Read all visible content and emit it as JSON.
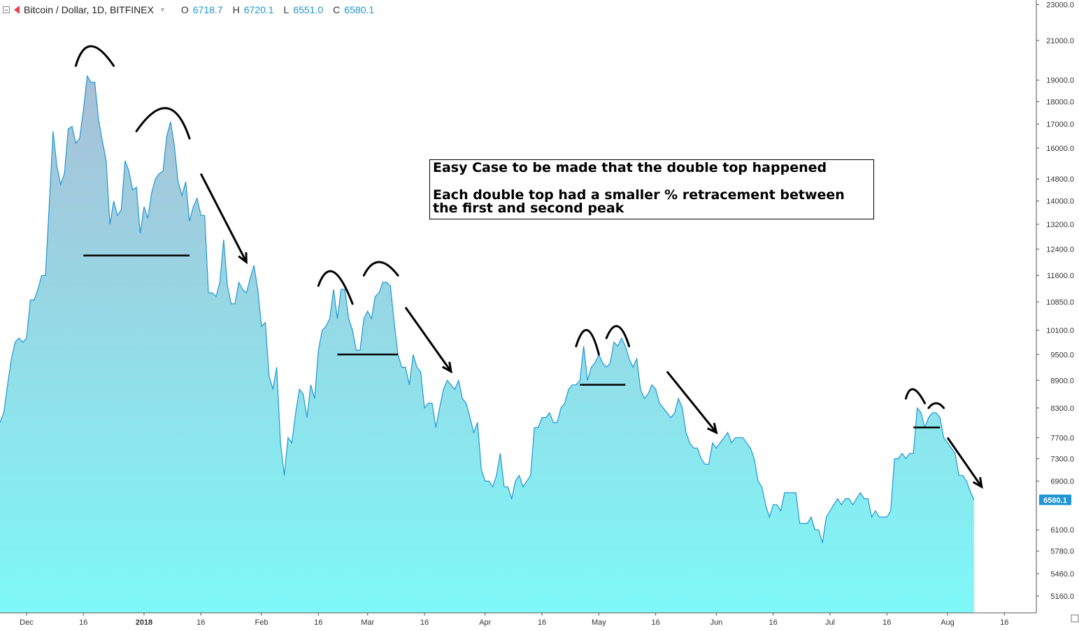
{
  "header": {
    "symbol": "Bitcoin / Dollar, 1D, BITFINEX",
    "open_key": "O",
    "open": "6718.7",
    "high_key": "H",
    "high": "6720.1",
    "low_key": "L",
    "low": "6551.0",
    "close_key": "C",
    "close": "6580.1"
  },
  "annotation": {
    "line1": "Easy Case to be made that the double top happened",
    "line2": "Each double top had a smaller %  retracement between the first and second peak"
  },
  "chart_data": {
    "type": "area",
    "series_color": "#2196d3",
    "fill_top": "#a9bfd6",
    "fill_bottom": "#7ef8f8",
    "y_scale": "log",
    "ylim": [
      5000,
      23500
    ],
    "y_ticks": [
      "23000.0",
      "21000.0",
      "19000.0",
      "18000.0",
      "17000.0",
      "16000.0",
      "14800.0",
      "14000.0",
      "13200.0",
      "12400.0",
      "11600.0",
      "10850.0",
      "10100.0",
      "9500.0",
      "8900.0",
      "8300.0",
      "7700.0",
      "7300.0",
      "6900.0",
      "6100.0",
      "5780.0",
      "5460.0",
      "5160.0"
    ],
    "x_ticks": [
      "Dec",
      "16",
      "2018",
      "16",
      "Feb",
      "16",
      "Mar",
      "16",
      "Apr",
      "16",
      "May",
      "16",
      "Jun",
      "16",
      "Jul",
      "16",
      "Aug",
      "16"
    ],
    "x_tick_dates": [
      "2017-12-01",
      "2017-12-16",
      "2018-01-01",
      "2018-01-16",
      "2018-02-01",
      "2018-02-16",
      "2018-03-01",
      "2018-03-16",
      "2018-04-01",
      "2018-04-16",
      "2018-05-01",
      "2018-05-16",
      "2018-06-01",
      "2018-06-16",
      "2018-07-01",
      "2018-07-16",
      "2018-08-01",
      "2018-08-16"
    ],
    "last_price": "6580.1",
    "points": [
      [
        "2017-11-24",
        8000
      ],
      [
        "2017-11-25",
        8200
      ],
      [
        "2017-11-26",
        8800
      ],
      [
        "2017-11-27",
        9400
      ],
      [
        "2017-11-28",
        9800
      ],
      [
        "2017-11-29",
        9900
      ],
      [
        "2017-11-30",
        9800
      ],
      [
        "2017-12-01",
        9900
      ],
      [
        "2017-12-02",
        10900
      ],
      [
        "2017-12-03",
        10900
      ],
      [
        "2017-12-04",
        11200
      ],
      [
        "2017-12-05",
        11600
      ],
      [
        "2017-12-06",
        11600
      ],
      [
        "2017-12-07",
        13900
      ],
      [
        "2017-12-08",
        16700
      ],
      [
        "2017-12-09",
        15300
      ],
      [
        "2017-12-10",
        14600
      ],
      [
        "2017-12-11",
        15000
      ],
      [
        "2017-12-12",
        16800
      ],
      [
        "2017-12-13",
        16900
      ],
      [
        "2017-12-14",
        16200
      ],
      [
        "2017-12-15",
        16400
      ],
      [
        "2017-12-16",
        17600
      ],
      [
        "2017-12-17",
        19200
      ],
      [
        "2017-12-18",
        18900
      ],
      [
        "2017-12-19",
        18900
      ],
      [
        "2017-12-20",
        17200
      ],
      [
        "2017-12-21",
        16300
      ],
      [
        "2017-12-22",
        15500
      ],
      [
        "2017-12-23",
        13200
      ],
      [
        "2017-12-24",
        14000
      ],
      [
        "2017-12-25",
        13500
      ],
      [
        "2017-12-26",
        13700
      ],
      [
        "2017-12-27",
        15500
      ],
      [
        "2017-12-28",
        15100
      ],
      [
        "2017-12-29",
        14400
      ],
      [
        "2017-12-30",
        14500
      ],
      [
        "2017-12-31",
        12900
      ],
      [
        "2018-01-01",
        13800
      ],
      [
        "2018-01-02",
        13400
      ],
      [
        "2018-01-03",
        14300
      ],
      [
        "2018-01-04",
        14800
      ],
      [
        "2018-01-05",
        15000
      ],
      [
        "2018-01-06",
        15100
      ],
      [
        "2018-01-07",
        16500
      ],
      [
        "2018-01-08",
        17100
      ],
      [
        "2018-01-09",
        16100
      ],
      [
        "2018-01-10",
        14700
      ],
      [
        "2018-01-11",
        14200
      ],
      [
        "2018-01-12",
        14700
      ],
      [
        "2018-01-13",
        13300
      ],
      [
        "2018-01-14",
        13800
      ],
      [
        "2018-01-15",
        14100
      ],
      [
        "2018-01-16",
        13500
      ],
      [
        "2018-01-17",
        13500
      ],
      [
        "2018-01-18",
        11100
      ],
      [
        "2018-01-19",
        11100
      ],
      [
        "2018-01-20",
        11000
      ],
      [
        "2018-01-21",
        11400
      ],
      [
        "2018-01-22",
        12700
      ],
      [
        "2018-01-23",
        11300
      ],
      [
        "2018-01-24",
        10800
      ],
      [
        "2018-01-25",
        10800
      ],
      [
        "2018-01-26",
        11400
      ],
      [
        "2018-01-27",
        11200
      ],
      [
        "2018-01-28",
        11100
      ],
      [
        "2018-01-29",
        11500
      ],
      [
        "2018-01-30",
        11900
      ],
      [
        "2018-01-31",
        11200
      ],
      [
        "2018-02-01",
        10200
      ],
      [
        "2018-02-02",
        10300
      ],
      [
        "2018-02-03",
        9000
      ],
      [
        "2018-02-04",
        8700
      ],
      [
        "2018-02-05",
        9200
      ],
      [
        "2018-02-06",
        7600
      ],
      [
        "2018-02-07",
        7000
      ],
      [
        "2018-02-08",
        7700
      ],
      [
        "2018-02-09",
        7600
      ],
      [
        "2018-02-10",
        8200
      ],
      [
        "2018-02-11",
        8700
      ],
      [
        "2018-02-12",
        8600
      ],
      [
        "2018-02-13",
        8100
      ],
      [
        "2018-02-14",
        8800
      ],
      [
        "2018-02-15",
        8500
      ],
      [
        "2018-02-16",
        9600
      ],
      [
        "2018-02-17",
        10100
      ],
      [
        "2018-02-18",
        10200
      ],
      [
        "2018-02-19",
        10400
      ],
      [
        "2018-02-20",
        11200
      ],
      [
        "2018-02-21",
        10400
      ],
      [
        "2018-02-22",
        11200
      ],
      [
        "2018-02-23",
        11200
      ],
      [
        "2018-02-24",
        10400
      ],
      [
        "2018-02-25",
        10100
      ],
      [
        "2018-02-26",
        9600
      ],
      [
        "2018-02-27",
        9600
      ],
      [
        "2018-02-28",
        10400
      ],
      [
        "2018-03-01",
        10600
      ],
      [
        "2018-03-02",
        10400
      ],
      [
        "2018-03-03",
        11000
      ],
      [
        "2018-03-04",
        11100
      ],
      [
        "2018-03-05",
        11400
      ],
      [
        "2018-03-06",
        11400
      ],
      [
        "2018-03-07",
        11300
      ],
      [
        "2018-03-08",
        10300
      ],
      [
        "2018-03-09",
        9500
      ],
      [
        "2018-03-10",
        9200
      ],
      [
        "2018-03-11",
        9200
      ],
      [
        "2018-03-12",
        8800
      ],
      [
        "2018-03-13",
        9500
      ],
      [
        "2018-03-14",
        9200
      ],
      [
        "2018-03-15",
        9100
      ],
      [
        "2018-03-16",
        8300
      ],
      [
        "2018-03-17",
        8400
      ],
      [
        "2018-03-18",
        8400
      ],
      [
        "2018-03-19",
        7900
      ],
      [
        "2018-03-20",
        8300
      ],
      [
        "2018-03-21",
        8700
      ],
      [
        "2018-03-22",
        8900
      ],
      [
        "2018-03-23",
        8800
      ],
      [
        "2018-03-24",
        8700
      ],
      [
        "2018-03-25",
        8900
      ],
      [
        "2018-03-26",
        8500
      ],
      [
        "2018-03-27",
        8400
      ],
      [
        "2018-03-28",
        8100
      ],
      [
        "2018-03-29",
        7800
      ],
      [
        "2018-03-30",
        8000
      ],
      [
        "2018-03-31",
        7100
      ],
      [
        "2018-04-01",
        6900
      ],
      [
        "2018-04-02",
        6900
      ],
      [
        "2018-04-03",
        6800
      ],
      [
        "2018-04-04",
        7000
      ],
      [
        "2018-04-05",
        7400
      ],
      [
        "2018-04-06",
        6800
      ],
      [
        "2018-04-07",
        6800
      ],
      [
        "2018-04-08",
        6600
      ],
      [
        "2018-04-09",
        6900
      ],
      [
        "2018-04-10",
        7000
      ],
      [
        "2018-04-11",
        6800
      ],
      [
        "2018-04-12",
        6900
      ],
      [
        "2018-04-13",
        7000
      ],
      [
        "2018-04-14",
        7900
      ],
      [
        "2018-04-15",
        7900
      ],
      [
        "2018-04-16",
        8100
      ],
      [
        "2018-04-17",
        8100
      ],
      [
        "2018-04-18",
        8200
      ],
      [
        "2018-04-19",
        8000
      ],
      [
        "2018-04-20",
        8000
      ],
      [
        "2018-04-21",
        8300
      ],
      [
        "2018-04-22",
        8400
      ],
      [
        "2018-04-23",
        8700
      ],
      [
        "2018-04-24",
        8800
      ],
      [
        "2018-04-25",
        8800
      ],
      [
        "2018-04-26",
        8900
      ],
      [
        "2018-04-27",
        9700
      ],
      [
        "2018-04-28",
        8900
      ],
      [
        "2018-04-29",
        9200
      ],
      [
        "2018-04-30",
        9300
      ],
      [
        "2018-05-01",
        9500
      ],
      [
        "2018-05-02",
        9300
      ],
      [
        "2018-05-03",
        9200
      ],
      [
        "2018-05-04",
        9300
      ],
      [
        "2018-05-05",
        9800
      ],
      [
        "2018-05-06",
        9700
      ],
      [
        "2018-05-07",
        9900
      ],
      [
        "2018-05-08",
        9700
      ],
      [
        "2018-05-09",
        9400
      ],
      [
        "2018-05-10",
        9200
      ],
      [
        "2018-05-11",
        9400
      ],
      [
        "2018-05-12",
        8700
      ],
      [
        "2018-05-13",
        8500
      ],
      [
        "2018-05-14",
        8600
      ],
      [
        "2018-05-15",
        8800
      ],
      [
        "2018-05-16",
        8700
      ],
      [
        "2018-05-17",
        8400
      ],
      [
        "2018-05-18",
        8300
      ],
      [
        "2018-05-19",
        8200
      ],
      [
        "2018-05-20",
        8100
      ],
      [
        "2018-05-21",
        8200
      ],
      [
        "2018-05-22",
        8500
      ],
      [
        "2018-05-23",
        8300
      ],
      [
        "2018-05-24",
        7800
      ],
      [
        "2018-05-25",
        7600
      ],
      [
        "2018-05-26",
        7500
      ],
      [
        "2018-05-27",
        7500
      ],
      [
        "2018-05-28",
        7300
      ],
      [
        "2018-05-29",
        7200
      ],
      [
        "2018-05-30",
        7200
      ],
      [
        "2018-05-31",
        7600
      ],
      [
        "2018-06-01",
        7500
      ],
      [
        "2018-06-02",
        7600
      ],
      [
        "2018-06-03",
        7700
      ],
      [
        "2018-06-04",
        7800
      ],
      [
        "2018-06-05",
        7600
      ],
      [
        "2018-06-06",
        7700
      ],
      [
        "2018-06-07",
        7700
      ],
      [
        "2018-06-08",
        7700
      ],
      [
        "2018-06-09",
        7600
      ],
      [
        "2018-06-10",
        7500
      ],
      [
        "2018-06-11",
        7300
      ],
      [
        "2018-06-12",
        6900
      ],
      [
        "2018-06-13",
        6800
      ],
      [
        "2018-06-14",
        6500
      ],
      [
        "2018-06-15",
        6300
      ],
      [
        "2018-06-16",
        6500
      ],
      [
        "2018-06-17",
        6500
      ],
      [
        "2018-06-18",
        6400
      ],
      [
        "2018-06-19",
        6700
      ],
      [
        "2018-06-20",
        6700
      ],
      [
        "2018-06-21",
        6700
      ],
      [
        "2018-06-22",
        6700
      ],
      [
        "2018-06-23",
        6200
      ],
      [
        "2018-06-24",
        6200
      ],
      [
        "2018-06-25",
        6200
      ],
      [
        "2018-06-26",
        6300
      ],
      [
        "2018-06-27",
        6100
      ],
      [
        "2018-06-28",
        6100
      ],
      [
        "2018-06-29",
        5900
      ],
      [
        "2018-06-30",
        6300
      ],
      [
        "2018-07-01",
        6400
      ],
      [
        "2018-07-02",
        6500
      ],
      [
        "2018-07-03",
        6600
      ],
      [
        "2018-07-04",
        6500
      ],
      [
        "2018-07-05",
        6600
      ],
      [
        "2018-07-06",
        6600
      ],
      [
        "2018-07-07",
        6500
      ],
      [
        "2018-07-08",
        6600
      ],
      [
        "2018-07-09",
        6700
      ],
      [
        "2018-07-10",
        6600
      ],
      [
        "2018-07-11",
        6600
      ],
      [
        "2018-07-12",
        6300
      ],
      [
        "2018-07-13",
        6400
      ],
      [
        "2018-07-14",
        6300
      ],
      [
        "2018-07-15",
        6300
      ],
      [
        "2018-07-16",
        6300
      ],
      [
        "2018-07-17",
        6400
      ],
      [
        "2018-07-18",
        7300
      ],
      [
        "2018-07-19",
        7300
      ],
      [
        "2018-07-20",
        7400
      ],
      [
        "2018-07-21",
        7300
      ],
      [
        "2018-07-22",
        7400
      ],
      [
        "2018-07-23",
        7400
      ],
      [
        "2018-07-24",
        8300
      ],
      [
        "2018-07-25",
        8200
      ],
      [
        "2018-07-26",
        7900
      ],
      [
        "2018-07-27",
        8100
      ],
      [
        "2018-07-28",
        8200
      ],
      [
        "2018-07-29",
        8200
      ],
      [
        "2018-07-30",
        8100
      ],
      [
        "2018-07-31",
        7700
      ],
      [
        "2018-08-01",
        7600
      ],
      [
        "2018-08-02",
        7500
      ],
      [
        "2018-08-03",
        7400
      ],
      [
        "2018-08-04",
        7000
      ],
      [
        "2018-08-05",
        7000
      ],
      [
        "2018-08-06",
        6900
      ],
      [
        "2018-08-07",
        6720
      ]
    ],
    "last_point": [
      "2018-08-08",
      6580.1
    ],
    "annotations": {
      "arcs": [
        {
          "left": [
            "2017-12-14",
            19700
          ],
          "peak": [
            "2017-12-18",
            20700
          ],
          "right": [
            "2017-12-24",
            19700
          ]
        },
        {
          "left": [
            "2017-12-30",
            16700
          ],
          "peak": [
            "2018-01-07",
            17700
          ],
          "right": [
            "2018-01-13",
            16400
          ]
        },
        {
          "left": [
            "2018-02-16",
            11300
          ],
          "peak": [
            "2018-02-20",
            11700
          ],
          "right": [
            "2018-02-25",
            10800
          ]
        },
        {
          "left": [
            "2018-02-28",
            11600
          ],
          "peak": [
            "2018-03-04",
            12000
          ],
          "right": [
            "2018-03-09",
            11600
          ]
        },
        {
          "left": [
            "2018-04-25",
            9700
          ],
          "peak": [
            "2018-04-28",
            10100
          ],
          "right": [
            "2018-05-01",
            9500
          ]
        },
        {
          "left": [
            "2018-05-03",
            9900
          ],
          "peak": [
            "2018-05-06",
            10200
          ],
          "right": [
            "2018-05-09",
            9700
          ]
        },
        {
          "left": [
            "2018-07-21",
            8500
          ],
          "peak": [
            "2018-07-23",
            8700
          ],
          "right": [
            "2018-07-26",
            8400
          ]
        },
        {
          "left": [
            "2018-07-27",
            8300
          ],
          "peak": [
            "2018-07-29",
            8400
          ],
          "right": [
            "2018-07-31",
            8300
          ]
        }
      ],
      "necklines": [
        {
          "from": [
            "2017-12-16",
            12200
          ],
          "to": [
            "2018-01-13",
            12200
          ]
        },
        {
          "from": [
            "2018-02-21",
            9500
          ],
          "to": [
            "2018-03-09",
            9500
          ]
        },
        {
          "from": [
            "2018-04-26",
            8800
          ],
          "to": [
            "2018-05-08",
            8800
          ]
        },
        {
          "from": [
            "2018-07-23",
            7900
          ],
          "to": [
            "2018-07-30",
            7900
          ]
        }
      ],
      "arrows": [
        {
          "from": [
            "2018-01-16",
            15000
          ],
          "to": [
            "2018-01-28",
            12000
          ]
        },
        {
          "from": [
            "2018-03-11",
            10700
          ],
          "to": [
            "2018-03-23",
            9100
          ]
        },
        {
          "from": [
            "2018-05-19",
            9100
          ],
          "to": [
            "2018-06-01",
            7800
          ]
        },
        {
          "from": [
            "2018-08-01",
            7700
          ],
          "to": [
            "2018-08-10",
            6800
          ]
        }
      ]
    }
  }
}
